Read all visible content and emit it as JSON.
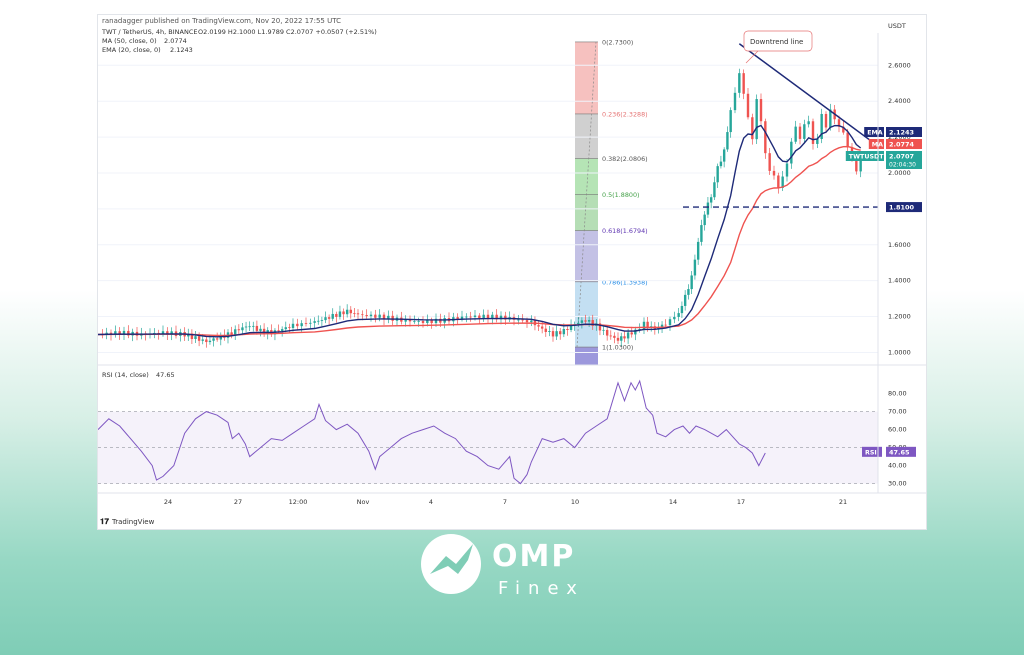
{
  "header": {
    "publisher": "ranadagger published on TradingView.com, Nov 20, 2022 17:55 UTC",
    "symbol_line": "TWT / TetherUS, 4h, BINANCE",
    "ohlc": "O2.0199  H2.1000  L1.9789  C2.0707  +0.0507 (+2.51%)",
    "ma_label": "MA (50, close, 0)",
    "ma_value": "2.0774",
    "ema_label": "EMA (20, close, 0)",
    "ema_value": "2.1243",
    "rsi_label": "RSI (14, close)",
    "rsi_value": "47.65"
  },
  "colors": {
    "up": "#26a69a",
    "down": "#ef5350",
    "ma": "#ef5350",
    "ema": "#1e2a78",
    "rsi": "#7e57c2",
    "trendline": "#1e2a78",
    "support": "#1e2a78"
  },
  "footer": {
    "tradingview": "TradingView"
  },
  "brand": {
    "name": "OMP",
    "sub": "Finex"
  },
  "chart_data": {
    "type": "candlestick",
    "title": "TWT / TetherUS, 4h, BINANCE",
    "y_axis_title": "USDT",
    "y_range": [
      0.93,
      2.78
    ],
    "y_ticks": [
      "2.6000",
      "2.4000",
      "2.2000",
      "2.0000",
      "1.8000",
      "1.6000",
      "1.4000",
      "1.2000",
      "1.0000"
    ],
    "x_ticks": [
      "24",
      "27",
      "12:00",
      "Nov",
      "4",
      "7",
      "10",
      "14",
      "17",
      "21"
    ],
    "price_tags": [
      {
        "label": "EMA",
        "value": "2.1243",
        "color": "#1e2a78"
      },
      {
        "label": "MA",
        "value": "2.0774",
        "color": "#ef5350"
      },
      {
        "label": "TWTUSDT",
        "value": "2.0707",
        "sub": "02:04:30",
        "color": "#26a69a"
      },
      {
        "label": "",
        "value": "1.8100",
        "color": "#1e2a78"
      }
    ],
    "fibonacci": [
      {
        "ratio": "0",
        "price": "2.7300",
        "label": "0(2.7300)"
      },
      {
        "ratio": "0.236",
        "price": "2.3288",
        "label": "0.236(2.3288)"
      },
      {
        "ratio": "0.382",
        "price": "2.0806",
        "label": "0.382(2.0806)"
      },
      {
        "ratio": "0.5",
        "price": "1.8800",
        "label": "0.5(1.8800)"
      },
      {
        "ratio": "0.618",
        "price": "1.6794",
        "label": "0.618(1.6794)"
      },
      {
        "ratio": "0.786",
        "price": "1.3938",
        "label": "0.786(1.3938)"
      },
      {
        "ratio": "1",
        "price": "1.0300",
        "label": "1(1.0300)"
      }
    ],
    "annotations": [
      {
        "text": "Downtrend line"
      },
      {
        "text": "1.8100",
        "kind": "horizontal support"
      }
    ],
    "price_path": [
      [
        0,
        1.1
      ],
      [
        10,
        1.11
      ],
      [
        20,
        1.1
      ],
      [
        30,
        1.11
      ],
      [
        40,
        1.1
      ],
      [
        45,
        1.08
      ],
      [
        50,
        1.06
      ],
      [
        55,
        1.08
      ],
      [
        60,
        1.1
      ],
      [
        65,
        1.13
      ],
      [
        70,
        1.15
      ],
      [
        75,
        1.12
      ],
      [
        80,
        1.11
      ],
      [
        85,
        1.13
      ],
      [
        90,
        1.15
      ],
      [
        100,
        1.17
      ],
      [
        105,
        1.19
      ],
      [
        110,
        1.21
      ],
      [
        115,
        1.23
      ],
      [
        120,
        1.21
      ],
      [
        130,
        1.2
      ],
      [
        140,
        1.18
      ],
      [
        150,
        1.17
      ],
      [
        160,
        1.18
      ],
      [
        170,
        1.2
      ],
      [
        180,
        1.2
      ],
      [
        190,
        1.19
      ],
      [
        200,
        1.17
      ],
      [
        205,
        1.13
      ],
      [
        210,
        1.1
      ],
      [
        215,
        1.12
      ],
      [
        220,
        1.16
      ],
      [
        225,
        1.18
      ],
      [
        230,
        1.15
      ],
      [
        235,
        1.1
      ],
      [
        240,
        1.07
      ],
      [
        243,
        1.09
      ],
      [
        248,
        1.12
      ],
      [
        252,
        1.16
      ],
      [
        257,
        1.13
      ],
      [
        262,
        1.16
      ],
      [
        268,
        1.22
      ],
      [
        271,
        1.31
      ],
      [
        274,
        1.42
      ],
      [
        277,
        1.62
      ],
      [
        280,
        1.78
      ],
      [
        283,
        1.87
      ],
      [
        286,
        2.03
      ],
      [
        289,
        2.12
      ],
      [
        292,
        2.35
      ],
      [
        294,
        2.45
      ],
      [
        296,
        2.55
      ],
      [
        298,
        2.45
      ],
      [
        300,
        2.3
      ],
      [
        302,
        2.2
      ],
      [
        304,
        2.4
      ],
      [
        306,
        2.3
      ],
      [
        308,
        2.1
      ],
      [
        310,
        2.02
      ],
      [
        312,
        1.98
      ],
      [
        314,
        1.92
      ],
      [
        316,
        1.98
      ],
      [
        318,
        2.05
      ],
      [
        320,
        2.18
      ],
      [
        322,
        2.25
      ],
      [
        324,
        2.2
      ],
      [
        326,
        2.26
      ],
      [
        328,
        2.3
      ],
      [
        330,
        2.15
      ],
      [
        332,
        2.2
      ],
      [
        334,
        2.32
      ],
      [
        336,
        2.26
      ],
      [
        338,
        2.35
      ],
      [
        340,
        2.3
      ],
      [
        342,
        2.26
      ],
      [
        344,
        2.22
      ],
      [
        346,
        2.15
      ],
      [
        348,
        2.08
      ],
      [
        350,
        2.02
      ],
      [
        352,
        2.07
      ]
    ],
    "rsi": {
      "y_range": [
        27,
        87
      ],
      "y_ticks": [
        "80.00",
        "70.00",
        "60.00",
        "50.00",
        "40.00",
        "30.00"
      ],
      "overbought": 70,
      "oversold": 30,
      "values": [
        [
          0,
          60
        ],
        [
          5,
          66
        ],
        [
          10,
          62
        ],
        [
          15,
          55
        ],
        [
          20,
          48
        ],
        [
          25,
          40
        ],
        [
          27,
          32
        ],
        [
          30,
          34
        ],
        [
          35,
          40
        ],
        [
          40,
          58
        ],
        [
          45,
          66
        ],
        [
          50,
          70
        ],
        [
          55,
          68
        ],
        [
          60,
          64
        ],
        [
          62,
          55
        ],
        [
          65,
          58
        ],
        [
          68,
          52
        ],
        [
          70,
          45
        ],
        [
          75,
          50
        ],
        [
          80,
          55
        ],
        [
          85,
          54
        ],
        [
          90,
          58
        ],
        [
          95,
          62
        ],
        [
          100,
          66
        ],
        [
          102,
          74
        ],
        [
          105,
          65
        ],
        [
          110,
          60
        ],
        [
          115,
          63
        ],
        [
          120,
          58
        ],
        [
          125,
          48
        ],
        [
          128,
          38
        ],
        [
          130,
          45
        ],
        [
          135,
          50
        ],
        [
          140,
          55
        ],
        [
          145,
          58
        ],
        [
          150,
          60
        ],
        [
          155,
          62
        ],
        [
          160,
          58
        ],
        [
          165,
          55
        ],
        [
          170,
          48
        ],
        [
          175,
          45
        ],
        [
          180,
          40
        ],
        [
          185,
          38
        ],
        [
          190,
          45
        ],
        [
          192,
          33
        ],
        [
          195,
          30
        ],
        [
          198,
          35
        ],
        [
          200,
          42
        ],
        [
          205,
          55
        ],
        [
          210,
          53
        ],
        [
          215,
          55
        ],
        [
          220,
          50
        ],
        [
          225,
          58
        ],
        [
          230,
          62
        ],
        [
          235,
          66
        ],
        [
          238,
          78
        ],
        [
          240,
          86
        ],
        [
          243,
          76
        ],
        [
          246,
          86
        ],
        [
          248,
          82
        ],
        [
          250,
          87
        ],
        [
          253,
          72
        ],
        [
          256,
          68
        ],
        [
          258,
          58
        ],
        [
          262,
          56
        ],
        [
          266,
          60
        ],
        [
          270,
          62
        ],
        [
          273,
          58
        ],
        [
          276,
          62
        ],
        [
          280,
          60
        ],
        [
          283,
          58
        ],
        [
          286,
          56
        ],
        [
          290,
          60
        ],
        [
          293,
          56
        ],
        [
          296,
          52
        ],
        [
          299,
          50
        ],
        [
          302,
          47
        ],
        [
          305,
          40
        ],
        [
          308,
          47
        ]
      ]
    }
  }
}
